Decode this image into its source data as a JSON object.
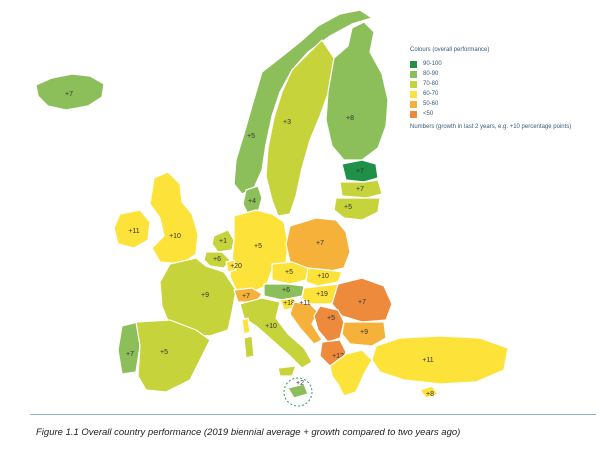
{
  "legend": {
    "title": "Colours (overall performance)",
    "items": [
      {
        "label": "90-100",
        "color": "#1e9048"
      },
      {
        "label": "80-90",
        "color": "#8cbf5a"
      },
      {
        "label": "70-80",
        "color": "#c6d33a"
      },
      {
        "label": "60-70",
        "color": "#fde23a"
      },
      {
        "label": "50-60",
        "color": "#f5b13a"
      },
      {
        "label": "<50",
        "color": "#ee8a3c"
      }
    ],
    "note": "Numbers (growth in last 2 years, e.g. +10 percentage points)"
  },
  "regions": [
    {
      "name": "iceland",
      "label": "+7",
      "band": "80-90"
    },
    {
      "name": "norway",
      "label": "+5",
      "band": "80-90"
    },
    {
      "name": "sweden",
      "label": "+3",
      "band": "70-80"
    },
    {
      "name": "finland",
      "label": "+8",
      "band": "80-90"
    },
    {
      "name": "estonia",
      "label": "+7",
      "band": "90-100"
    },
    {
      "name": "latvia",
      "label": "+7",
      "band": "70-80"
    },
    {
      "name": "lithuania",
      "label": "+5",
      "band": "70-80"
    },
    {
      "name": "denmark",
      "label": "+4",
      "band": "80-90"
    },
    {
      "name": "ireland",
      "label": "+11",
      "band": "60-70"
    },
    {
      "name": "united-kingdom",
      "label": "+10",
      "band": "60-70"
    },
    {
      "name": "netherlands",
      "label": "+1",
      "band": "70-80"
    },
    {
      "name": "belgium",
      "label": "+6",
      "band": "70-80"
    },
    {
      "name": "luxembourg",
      "label": "+20",
      "band": "60-70"
    },
    {
      "name": "germany",
      "label": "+5",
      "band": "60-70"
    },
    {
      "name": "poland",
      "label": "+7",
      "band": "50-60"
    },
    {
      "name": "czechia",
      "label": "+5",
      "band": "60-70"
    },
    {
      "name": "slovakia",
      "label": "+10",
      "band": "60-70"
    },
    {
      "name": "austria",
      "label": "+6",
      "band": "80-90"
    },
    {
      "name": "hungary",
      "label": "+19",
      "band": "60-70"
    },
    {
      "name": "slovenia",
      "label": "+18",
      "band": "60-70"
    },
    {
      "name": "croatia",
      "label": "+11",
      "band": "50-60"
    },
    {
      "name": "romania",
      "label": "+7",
      "band": "<50"
    },
    {
      "name": "serbia",
      "label": "+5",
      "band": "<50"
    },
    {
      "name": "bulgaria",
      "label": "+9",
      "band": "50-60"
    },
    {
      "name": "montenegro",
      "label": "+12",
      "band": "<50"
    },
    {
      "name": "france",
      "label": "+9",
      "band": "70-80"
    },
    {
      "name": "switzerland",
      "label": "+7",
      "band": "50-60"
    },
    {
      "name": "italy",
      "label": "+10",
      "band": "70-80"
    },
    {
      "name": "portugal",
      "label": "+7",
      "band": "80-90"
    },
    {
      "name": "spain",
      "label": "+5",
      "band": "70-80"
    },
    {
      "name": "turkey",
      "label": "+11",
      "band": "60-70"
    },
    {
      "name": "malta",
      "label": "+2",
      "band": "80-90"
    },
    {
      "name": "cyprus",
      "label": "+8",
      "band": "60-70"
    }
  ],
  "caption": "Figure 1.1 Overall country performance (2019 biennial average + growth compared to two years ago)"
}
